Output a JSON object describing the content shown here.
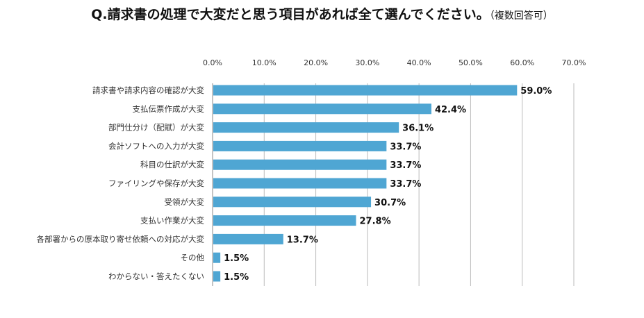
{
  "chart_data": {
    "type": "bar",
    "orientation": "horizontal",
    "title": "Q.請求書の処理で大変だと思う項目があれば全て選んでください。",
    "subtitle": "（複数回答可）",
    "categories": [
      "請求書や請求内容の確認が大変",
      "支払伝票作成が大変",
      "部門仕分け（配賦）が大変",
      "会計ソフトへの入力が大変",
      "科目の仕訳が大変",
      "ファイリングや保存が大変",
      "受領が大変",
      "支払い作業が大変",
      "各部署からの原本取り寄せ依頼への対応が大変",
      "その他",
      "わからない・答えたくない"
    ],
    "values": [
      59.0,
      42.4,
      36.1,
      33.7,
      33.7,
      33.7,
      30.7,
      27.8,
      13.7,
      1.5,
      1.5
    ],
    "data_labels": [
      "59.0%",
      "42.4%",
      "36.1%",
      "33.7%",
      "33.7%",
      "33.7%",
      "30.7%",
      "27.8%",
      "13.7%",
      "1.5%",
      "1.5%"
    ],
    "xlim": [
      0,
      70
    ],
    "x_ticks": [
      "0.0%",
      "10.0%",
      "20.0%",
      "30.0%",
      "40.0%",
      "50.0%",
      "60.0%",
      "70.0%"
    ],
    "x_axis_position": "top",
    "grid": true,
    "bar_color": "#4fa6d3",
    "grid_color": "#bbbbbb",
    "xlabel": "",
    "ylabel": ""
  }
}
